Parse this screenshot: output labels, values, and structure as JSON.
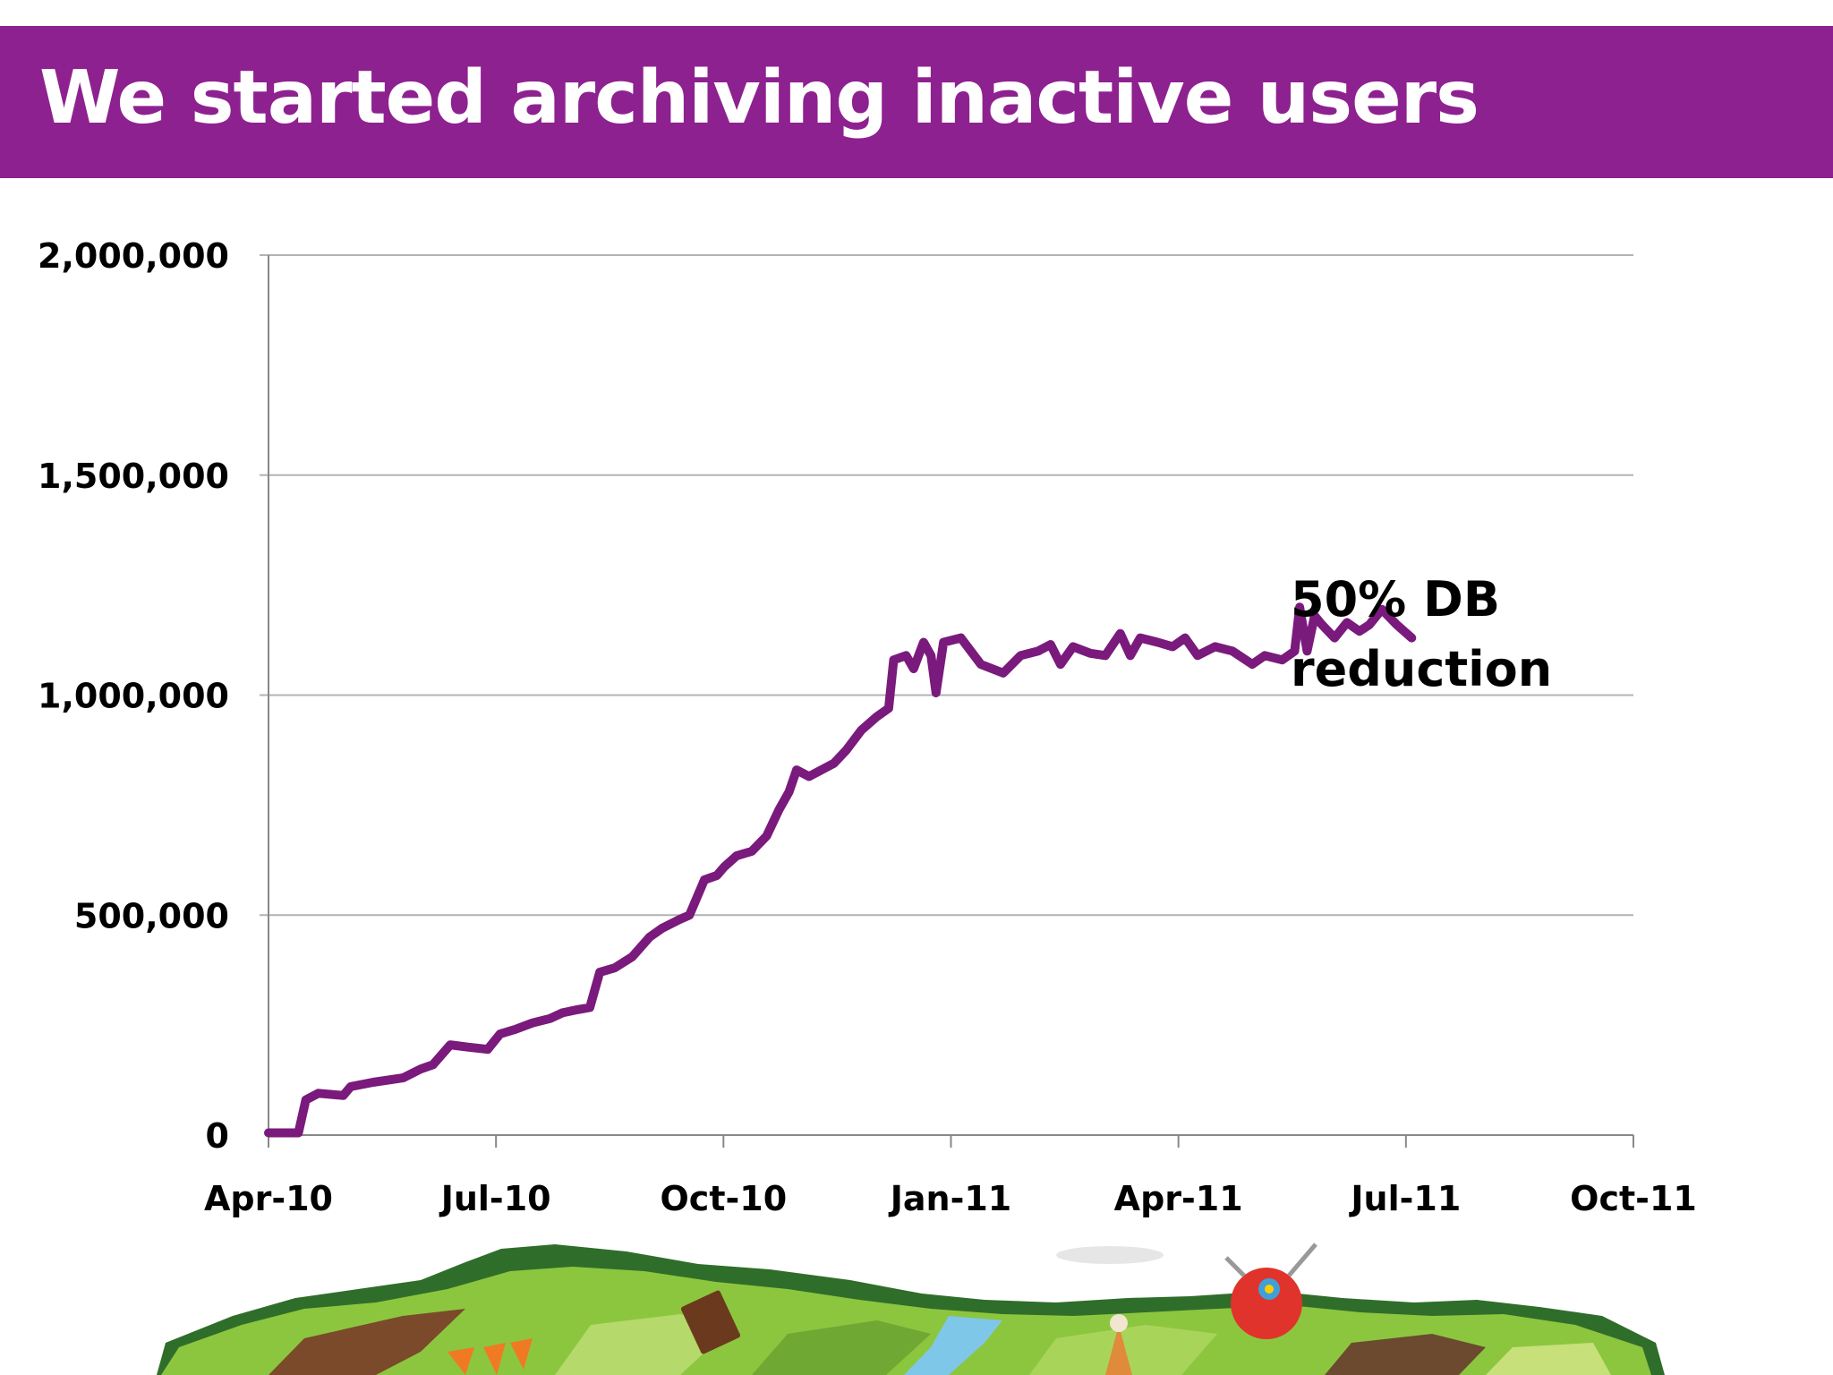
{
  "slide": {
    "title": "We started archiving inactive users",
    "colors": {
      "header": "#8e2190",
      "line": "#7a1a7c",
      "axis": "#888888",
      "grid": "#b3b3b3"
    }
  },
  "chart_data": {
    "type": "line",
    "title": "",
    "xlabel": "",
    "ylabel": "",
    "x_ticks": [
      "Apr-10",
      "Jul-10",
      "Oct-10",
      "Jan-11",
      "Apr-11",
      "Jul-11",
      "Oct-11"
    ],
    "y_ticks": [
      "0",
      "500,000",
      "1,000,000",
      "1,500,000",
      "2,000,000"
    ],
    "xlim": [
      "2010-04-01",
      "2011-10-01"
    ],
    "ylim": [
      0,
      2000000
    ],
    "grid": true,
    "series": [
      {
        "name": "",
        "color": "#7a1a7c",
        "points": [
          [
            "2010-04-01",
            5000
          ],
          [
            "2010-04-13",
            5000
          ],
          [
            "2010-04-16",
            80000
          ],
          [
            "2010-04-21",
            95000
          ],
          [
            "2010-05-01",
            90000
          ],
          [
            "2010-05-04",
            110000
          ],
          [
            "2010-05-13",
            120000
          ],
          [
            "2010-05-25",
            130000
          ],
          [
            "2010-06-01",
            150000
          ],
          [
            "2010-06-06",
            160000
          ],
          [
            "2010-06-13",
            205000
          ],
          [
            "2010-06-20",
            200000
          ],
          [
            "2010-06-28",
            195000
          ],
          [
            "2010-07-03",
            230000
          ],
          [
            "2010-07-09",
            240000
          ],
          [
            "2010-07-16",
            255000
          ],
          [
            "2010-07-23",
            265000
          ],
          [
            "2010-07-28",
            278000
          ],
          [
            "2010-08-03",
            285000
          ],
          [
            "2010-08-08",
            290000
          ],
          [
            "2010-08-12",
            370000
          ],
          [
            "2010-08-18",
            380000
          ],
          [
            "2010-08-25",
            405000
          ],
          [
            "2010-09-01",
            450000
          ],
          [
            "2010-09-06",
            470000
          ],
          [
            "2010-09-13",
            490000
          ],
          [
            "2010-09-17",
            500000
          ],
          [
            "2010-09-23",
            580000
          ],
          [
            "2010-09-28",
            590000
          ],
          [
            "2010-10-01",
            610000
          ],
          [
            "2010-10-06",
            635000
          ],
          [
            "2010-10-12",
            645000
          ],
          [
            "2010-10-18",
            680000
          ],
          [
            "2010-10-23",
            740000
          ],
          [
            "2010-10-27",
            780000
          ],
          [
            "2010-10-30",
            830000
          ],
          [
            "2010-11-04",
            815000
          ],
          [
            "2010-11-09",
            830000
          ],
          [
            "2010-11-14",
            845000
          ],
          [
            "2010-11-19",
            875000
          ],
          [
            "2010-11-25",
            920000
          ],
          [
            "2010-12-01",
            950000
          ],
          [
            "2010-12-06",
            970000
          ],
          [
            "2010-12-08",
            1080000
          ],
          [
            "2010-12-13",
            1090000
          ],
          [
            "2010-12-16",
            1060000
          ],
          [
            "2010-12-20",
            1120000
          ],
          [
            "2010-12-23",
            1090000
          ],
          [
            "2010-12-25",
            1005000
          ],
          [
            "2010-12-28",
            1120000
          ],
          [
            "2011-01-04",
            1130000
          ],
          [
            "2011-01-12",
            1070000
          ],
          [
            "2011-01-21",
            1050000
          ],
          [
            "2011-01-28",
            1090000
          ],
          [
            "2011-02-04",
            1100000
          ],
          [
            "2011-02-09",
            1115000
          ],
          [
            "2011-02-13",
            1070000
          ],
          [
            "2011-02-18",
            1110000
          ],
          [
            "2011-02-25",
            1095000
          ],
          [
            "2011-03-03",
            1090000
          ],
          [
            "2011-03-09",
            1140000
          ],
          [
            "2011-03-13",
            1090000
          ],
          [
            "2011-03-17",
            1130000
          ],
          [
            "2011-03-24",
            1120000
          ],
          [
            "2011-03-30",
            1110000
          ],
          [
            "2011-04-04",
            1130000
          ],
          [
            "2011-04-09",
            1090000
          ],
          [
            "2011-04-16",
            1110000
          ],
          [
            "2011-04-23",
            1100000
          ],
          [
            "2011-05-01",
            1070000
          ],
          [
            "2011-05-06",
            1090000
          ],
          [
            "2011-05-13",
            1080000
          ],
          [
            "2011-05-18",
            1100000
          ],
          [
            "2011-05-20",
            1200000
          ],
          [
            "2011-05-23",
            1100000
          ],
          [
            "2011-05-26",
            1180000
          ],
          [
            "2011-05-29",
            1160000
          ],
          [
            "2011-06-03",
            1130000
          ],
          [
            "2011-06-08",
            1165000
          ],
          [
            "2011-06-13",
            1145000
          ],
          [
            "2011-06-17",
            1160000
          ],
          [
            "2011-06-22",
            1195000
          ],
          [
            "2011-06-28",
            1160000
          ],
          [
            "2011-07-04",
            1130000
          ]
        ]
      }
    ],
    "annotations": [
      {
        "lines": [
          "50% DB",
          "reduction"
        ]
      }
    ]
  }
}
